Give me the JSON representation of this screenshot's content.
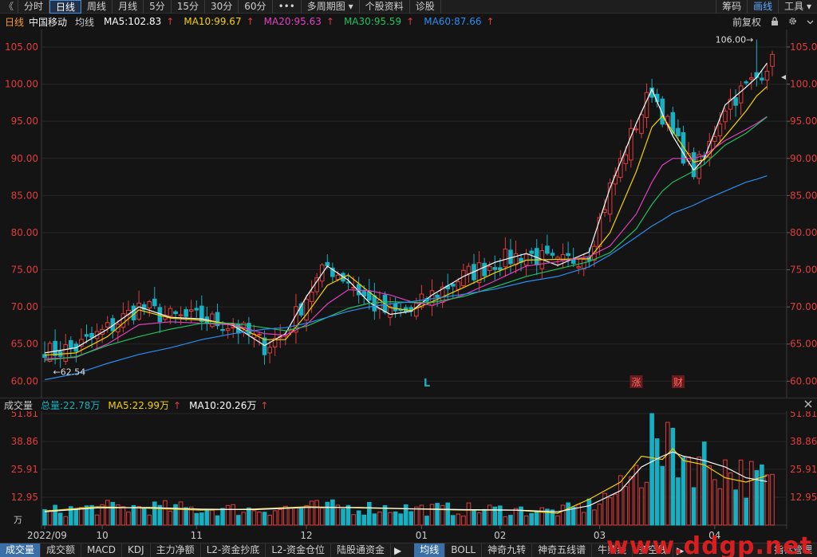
{
  "toolbar": {
    "back_icon": "double-chevron-left-icon",
    "tabs": [
      "分时",
      "日线",
      "周线",
      "月线",
      "5分",
      "15分",
      "30分",
      "60分"
    ],
    "active_tab": "日线",
    "more_label": "•••",
    "multi_period_label": "多周期图",
    "stock_info_label": "个股资料",
    "diagnose_label": "诊股",
    "right_items": [
      "筹码",
      "画线",
      "工具"
    ],
    "active_right": "画线"
  },
  "info": {
    "period": "日线",
    "stock_name": "中国移动",
    "ma_label": "均线",
    "ma5": "MA5:102.83",
    "ma10": "MA10:99.67",
    "ma20": "MA20:95.63",
    "ma30": "MA30:95.59",
    "ma60": "MA60:87.66",
    "up_arrow": "↑",
    "adjust_label": "前复权",
    "lock_icon": "lock-icon",
    "gear_icon": "gear-icon",
    "chevron_icon": "chevron-down-icon"
  },
  "volume_info": {
    "label": "成交量",
    "total": "总量:22.78万",
    "ma5": "MA5:22.99万",
    "ma10": "MA10:20.26万",
    "up_arrow": "↑"
  },
  "colors": {
    "up": "#e03c3c",
    "down": "#17b0c2",
    "ma5": "#ffffff",
    "ma10": "#f5d000",
    "ma20": "#e040c0",
    "ma30": "#20c060",
    "ma60": "#2a8cf0",
    "axis": "#e03c3c"
  },
  "chart_data": [
    {
      "type": "candlestick",
      "series_label": "中国移动 日线",
      "y_ticks": [
        "105.00",
        "100.00",
        "95.00",
        "90.00",
        "85.00",
        "80.00",
        "75.00",
        "70.00",
        "65.00",
        "60.00"
      ],
      "ylim": [
        59.5,
        106.5
      ],
      "x_ticks": [
        {
          "label": "2022/09",
          "index": 0
        },
        {
          "label": "10",
          "index": 11
        },
        {
          "label": "11",
          "index": 29
        },
        {
          "label": "12",
          "index": 50
        },
        {
          "label": "01",
          "index": 72
        },
        {
          "label": "02",
          "index": 87
        },
        {
          "label": "03",
          "index": 106
        },
        {
          "label": "04",
          "index": 128
        }
      ],
      "annotations": [
        {
          "text": "106.00→",
          "kind": "high",
          "value": 106.0,
          "index": 136
        },
        {
          "text": "←62.54",
          "kind": "low",
          "value": 62.54,
          "index": 1
        }
      ],
      "markers": [
        {
          "text": "L",
          "index": 73
        },
        {
          "text": "涨",
          "index": 113
        },
        {
          "text": "财",
          "index": 121
        }
      ],
      "ma_series": [
        {
          "name": "MA5",
          "values": [
            [
              0,
              63.8
            ],
            [
              6,
              64.5
            ],
            [
              12,
              67.0
            ],
            [
              18,
              70.0
            ],
            [
              24,
              68.6
            ],
            [
              30,
              68.4
            ],
            [
              36,
              67.5
            ],
            [
              42,
              64.8
            ],
            [
              46,
              66.4
            ],
            [
              50,
              71.4
            ],
            [
              54,
              75.5
            ],
            [
              58,
              73.6
            ],
            [
              62,
              70.6
            ],
            [
              66,
              69.0
            ],
            [
              70,
              69.4
            ],
            [
              74,
              71.6
            ],
            [
              80,
              74.1
            ],
            [
              86,
              76.0
            ],
            [
              92,
              77.2
            ],
            [
              98,
              75.6
            ],
            [
              104,
              77.4
            ],
            [
              108,
              86.0
            ],
            [
              113,
              94.7
            ],
            [
              116,
              99.3
            ],
            [
              118,
              96.0
            ],
            [
              120,
              93.0
            ],
            [
              124,
              88.4
            ],
            [
              126,
              90.0
            ],
            [
              130,
              97.2
            ],
            [
              134,
              99.6
            ],
            [
              136,
              100.9
            ],
            [
              138,
              102.83
            ]
          ]
        },
        {
          "name": "MA10",
          "values": [
            [
              0,
              63.5
            ],
            [
              6,
              63.8
            ],
            [
              12,
              66.0
            ],
            [
              18,
              69.6
            ],
            [
              24,
              68.5
            ],
            [
              30,
              68.2
            ],
            [
              36,
              67.7
            ],
            [
              42,
              65.6
            ],
            [
              46,
              65.6
            ],
            [
              50,
              69.0
            ],
            [
              54,
              72.9
            ],
            [
              58,
              74.3
            ],
            [
              62,
              72.0
            ],
            [
              66,
              69.9
            ],
            [
              70,
              69.5
            ],
            [
              74,
              70.7
            ],
            [
              80,
              72.6
            ],
            [
              86,
              74.6
            ],
            [
              92,
              76.3
            ],
            [
              98,
              76.4
            ],
            [
              104,
              76.5
            ],
            [
              108,
              80.0
            ],
            [
              113,
              88.2
            ],
            [
              116,
              94.2
            ],
            [
              118,
              95.7
            ],
            [
              120,
              93.6
            ],
            [
              124,
              89.5
            ],
            [
              126,
              89.8
            ],
            [
              130,
              93.0
            ],
            [
              134,
              96.4
            ],
            [
              136,
              98.4
            ],
            [
              138,
              99.67
            ]
          ]
        },
        {
          "name": "MA20",
          "values": [
            [
              0,
              63.0
            ],
            [
              6,
              63.2
            ],
            [
              12,
              65.0
            ],
            [
              18,
              67.6
            ],
            [
              24,
              68.0
            ],
            [
              30,
              67.8
            ],
            [
              36,
              67.6
            ],
            [
              42,
              66.4
            ],
            [
              46,
              66.2
            ],
            [
              50,
              67.6
            ],
            [
              54,
              70.4
            ],
            [
              58,
              72.3
            ],
            [
              62,
              72.2
            ],
            [
              66,
              71.6
            ],
            [
              70,
              70.7
            ],
            [
              74,
              70.2
            ],
            [
              80,
              71.6
            ],
            [
              86,
              73.5
            ],
            [
              92,
              75.5
            ],
            [
              98,
              76.1
            ],
            [
              104,
              76.8
            ],
            [
              108,
              78.2
            ],
            [
              113,
              82.5
            ],
            [
              116,
              86.8
            ],
            [
              118,
              89.1
            ],
            [
              120,
              90.0
            ],
            [
              124,
              90.0
            ],
            [
              126,
              90.4
            ],
            [
              130,
              92.4
            ],
            [
              134,
              93.9
            ],
            [
              136,
              94.7
            ],
            [
              138,
              95.63
            ]
          ]
        },
        {
          "name": "MA30",
          "values": [
            [
              0,
              62.8
            ],
            [
              6,
              63.3
            ],
            [
              12,
              64.8
            ],
            [
              18,
              66.0
            ],
            [
              24,
              67.0
            ],
            [
              30,
              67.8
            ],
            [
              36,
              67.8
            ],
            [
              42,
              67.2
            ],
            [
              46,
              66.8
            ],
            [
              50,
              67.4
            ],
            [
              54,
              68.6
            ],
            [
              58,
              69.8
            ],
            [
              62,
              70.5
            ],
            [
              66,
              70.7
            ],
            [
              70,
              70.6
            ],
            [
              74,
              70.6
            ],
            [
              80,
              71.4
            ],
            [
              86,
              72.7
            ],
            [
              92,
              74.1
            ],
            [
              98,
              75.1
            ],
            [
              104,
              76.1
            ],
            [
              108,
              77.3
            ],
            [
              113,
              80.5
            ],
            [
              116,
              83.8
            ],
            [
              118,
              85.6
            ],
            [
              120,
              86.8
            ],
            [
              124,
              88.3
            ],
            [
              126,
              89.2
            ],
            [
              130,
              91.8
            ],
            [
              134,
              93.4
            ],
            [
              136,
              94.5
            ],
            [
              138,
              95.59
            ]
          ]
        },
        {
          "name": "MA60",
          "values": [
            [
              0,
              60.2
            ],
            [
              6,
              61.0
            ],
            [
              12,
              62.4
            ],
            [
              18,
              63.6
            ],
            [
              24,
              64.5
            ],
            [
              30,
              65.6
            ],
            [
              36,
              66.4
            ],
            [
              42,
              67.0
            ],
            [
              46,
              67.2
            ],
            [
              50,
              67.8
            ],
            [
              54,
              68.6
            ],
            [
              58,
              69.4
            ],
            [
              62,
              70.0
            ],
            [
              66,
              70.4
            ],
            [
              70,
              70.7
            ],
            [
              74,
              71.1
            ],
            [
              80,
              71.7
            ],
            [
              86,
              72.4
            ],
            [
              92,
              73.4
            ],
            [
              98,
              74.1
            ],
            [
              104,
              75.4
            ],
            [
              108,
              77.0
            ],
            [
              113,
              79.4
            ],
            [
              116,
              80.9
            ],
            [
              118,
              81.7
            ],
            [
              120,
              82.6
            ],
            [
              124,
              83.7
            ],
            [
              126,
              84.4
            ],
            [
              130,
              85.6
            ],
            [
              134,
              86.8
            ],
            [
              136,
              87.2
            ],
            [
              138,
              87.66
            ]
          ]
        }
      ]
    },
    {
      "type": "bar",
      "series_label": "成交量",
      "y_ticks": [
        "51.81",
        "38.86",
        "25.91",
        "12.95"
      ],
      "y_unit": "万",
      "ylim": [
        0,
        51.81
      ],
      "ma_series": [
        {
          "name": "MA5",
          "values": [
            [
              0,
              6.5
            ],
            [
              10,
              8.5
            ],
            [
              20,
              7.8
            ],
            [
              30,
              7.0
            ],
            [
              40,
              7.5
            ],
            [
              50,
              8.5
            ],
            [
              60,
              8.0
            ],
            [
              70,
              7.5
            ],
            [
              80,
              7.0
            ],
            [
              90,
              7.0
            ],
            [
              98,
              5.5
            ],
            [
              104,
              12.0
            ],
            [
              110,
              20.0
            ],
            [
              114,
              32.0
            ],
            [
              118,
              30.5
            ],
            [
              120,
              35.5
            ],
            [
              122,
              30.0
            ],
            [
              126,
              28.0
            ],
            [
              130,
              22.0
            ],
            [
              134,
              20.0
            ],
            [
              138,
              23.0
            ]
          ]
        },
        {
          "name": "MA10",
          "values": [
            [
              0,
              6.2
            ],
            [
              10,
              8.0
            ],
            [
              20,
              8.2
            ],
            [
              30,
              7.4
            ],
            [
              40,
              7.2
            ],
            [
              50,
              8.2
            ],
            [
              60,
              8.2
            ],
            [
              70,
              7.6
            ],
            [
              80,
              7.2
            ],
            [
              90,
              7.0
            ],
            [
              98,
              6.2
            ],
            [
              104,
              9.0
            ],
            [
              110,
              16.0
            ],
            [
              114,
              27.0
            ],
            [
              118,
              32.0
            ],
            [
              120,
              34.0
            ],
            [
              122,
              32.0
            ],
            [
              126,
              30.0
            ],
            [
              130,
              27.0
            ],
            [
              134,
              22.0
            ],
            [
              138,
              20.26
            ]
          ]
        }
      ]
    }
  ]
}
